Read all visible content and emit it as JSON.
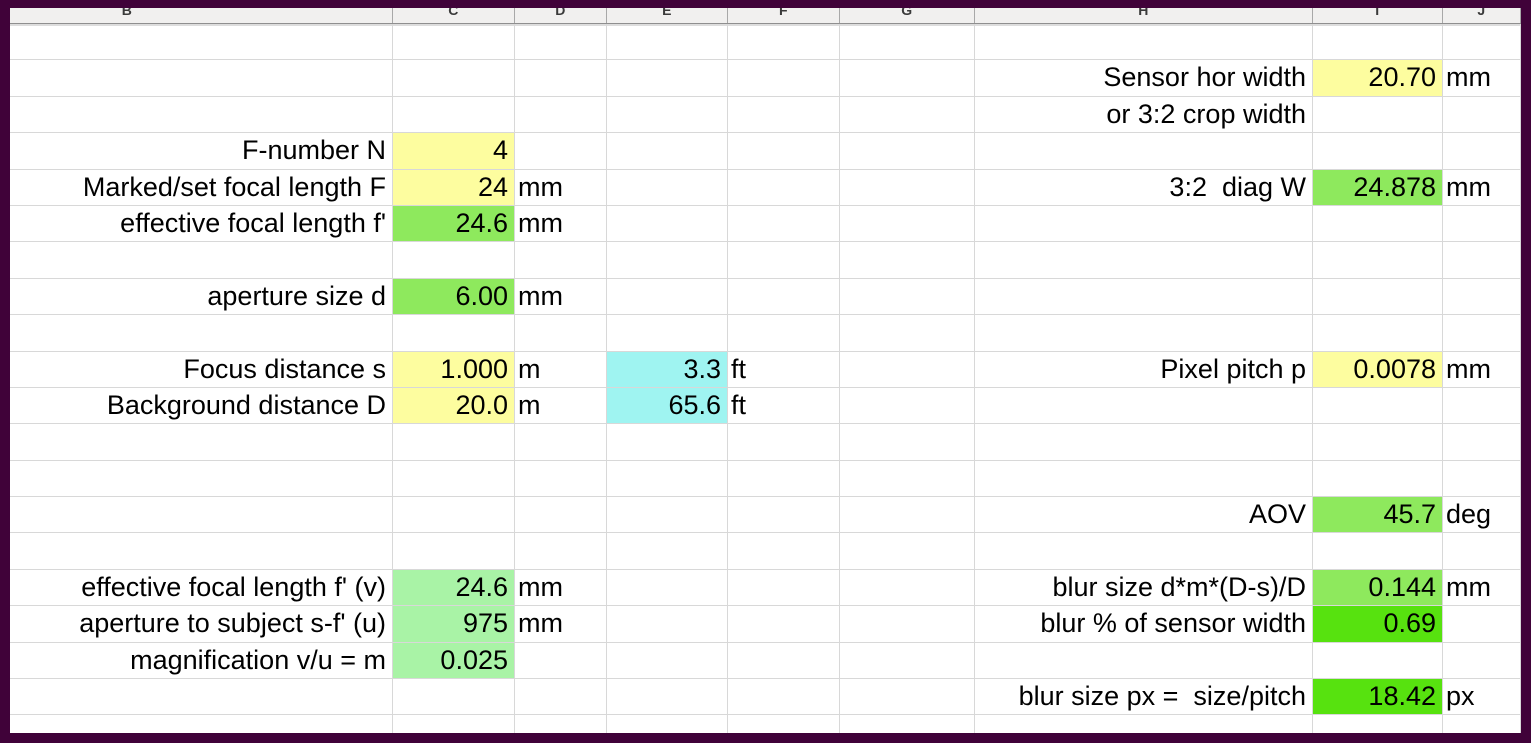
{
  "sheet": {
    "columns": [
      "B",
      "C",
      "D",
      "E",
      "F",
      "G",
      "H",
      "I",
      "J"
    ],
    "visible_row_count": 20,
    "palette": {
      "frame_purple": "#400239",
      "gridline_gray": "#D8D8D8",
      "header_bg": "#F1F0EF",
      "input_yellow": "#FDFD9F",
      "result_green": "#8EE95D",
      "result_pastel_green": "#A9F3A6",
      "result_vivid_green": "#57E20F",
      "alt_unit_cyan": "#9FF4F1"
    },
    "cells": [
      {
        "row": 2,
        "col": "H",
        "text": "Sensor hor width",
        "align": "right"
      },
      {
        "row": 2,
        "col": "I",
        "text": "20.70",
        "align": "right",
        "bg": "input_yellow"
      },
      {
        "row": 2,
        "col": "J",
        "text": "mm",
        "align": "left"
      },
      {
        "row": 3,
        "col": "H",
        "text": "or 3:2 crop width",
        "align": "right"
      },
      {
        "row": 4,
        "col": "B",
        "text": "F-number N",
        "align": "right"
      },
      {
        "row": 4,
        "col": "C",
        "text": "4",
        "align": "right",
        "bg": "input_yellow"
      },
      {
        "row": 5,
        "col": "B",
        "text": "Marked/set focal length F",
        "align": "right"
      },
      {
        "row": 5,
        "col": "C",
        "text": "24",
        "align": "right",
        "bg": "input_yellow"
      },
      {
        "row": 5,
        "col": "D",
        "text": "mm",
        "align": "left"
      },
      {
        "row": 5,
        "col": "H",
        "text": "3:2  diag W",
        "align": "right"
      },
      {
        "row": 5,
        "col": "I",
        "text": "24.878",
        "align": "right",
        "bg": "result_green"
      },
      {
        "row": 5,
        "col": "J",
        "text": "mm",
        "align": "left"
      },
      {
        "row": 6,
        "col": "B",
        "text": "effective focal length f'",
        "align": "right"
      },
      {
        "row": 6,
        "col": "C",
        "text": "24.6",
        "align": "right",
        "bg": "result_green"
      },
      {
        "row": 6,
        "col": "D",
        "text": "mm",
        "align": "left"
      },
      {
        "row": 8,
        "col": "B",
        "text": "aperture size d",
        "align": "right"
      },
      {
        "row": 8,
        "col": "C",
        "text": "6.00",
        "align": "right",
        "bg": "result_green"
      },
      {
        "row": 8,
        "col": "D",
        "text": "mm",
        "align": "left"
      },
      {
        "row": 10,
        "col": "B",
        "text": "Focus distance s",
        "align": "right"
      },
      {
        "row": 10,
        "col": "C",
        "text": "1.000",
        "align": "right",
        "bg": "input_yellow"
      },
      {
        "row": 10,
        "col": "D",
        "text": "m",
        "align": "left"
      },
      {
        "row": 10,
        "col": "E",
        "text": "3.3",
        "align": "right",
        "bg": "alt_unit_cyan"
      },
      {
        "row": 10,
        "col": "F",
        "text": "ft",
        "align": "left"
      },
      {
        "row": 10,
        "col": "H",
        "text": "Pixel pitch p",
        "align": "right"
      },
      {
        "row": 10,
        "col": "I",
        "text": "0.0078",
        "align": "right",
        "bg": "input_yellow"
      },
      {
        "row": 10,
        "col": "J",
        "text": "mm",
        "align": "left"
      },
      {
        "row": 11,
        "col": "B",
        "text": "Background distance D",
        "align": "right"
      },
      {
        "row": 11,
        "col": "C",
        "text": "20.0",
        "align": "right",
        "bg": "input_yellow"
      },
      {
        "row": 11,
        "col": "D",
        "text": "m",
        "align": "left"
      },
      {
        "row": 11,
        "col": "E",
        "text": "65.6",
        "align": "right",
        "bg": "alt_unit_cyan"
      },
      {
        "row": 11,
        "col": "F",
        "text": "ft",
        "align": "left"
      },
      {
        "row": 14,
        "col": "H",
        "text": "AOV",
        "align": "right"
      },
      {
        "row": 14,
        "col": "I",
        "text": "45.7",
        "align": "right",
        "bg": "result_green"
      },
      {
        "row": 14,
        "col": "J",
        "text": "deg",
        "align": "left"
      },
      {
        "row": 16,
        "col": "B",
        "text": "effective focal length f' (v)",
        "align": "right"
      },
      {
        "row": 16,
        "col": "C",
        "text": "24.6",
        "align": "right",
        "bg": "result_pastel_green"
      },
      {
        "row": 16,
        "col": "D",
        "text": "mm",
        "align": "left"
      },
      {
        "row": 16,
        "col": "H",
        "text": "blur size d*m*(D-s)/D",
        "align": "right"
      },
      {
        "row": 16,
        "col": "I",
        "text": "0.144",
        "align": "right",
        "bg": "result_green"
      },
      {
        "row": 16,
        "col": "J",
        "text": "mm",
        "align": "left"
      },
      {
        "row": 17,
        "col": "B",
        "text": "aperture to subject s-f' (u)",
        "align": "right"
      },
      {
        "row": 17,
        "col": "C",
        "text": "975",
        "align": "right",
        "bg": "result_pastel_green"
      },
      {
        "row": 17,
        "col": "D",
        "text": "mm",
        "align": "left"
      },
      {
        "row": 17,
        "col": "H",
        "text": "blur % of sensor width",
        "align": "right"
      },
      {
        "row": 17,
        "col": "I",
        "text": "0.69",
        "align": "right",
        "bg": "result_vivid_green"
      },
      {
        "row": 18,
        "col": "B",
        "text": "magnification v/u = m",
        "align": "right"
      },
      {
        "row": 18,
        "col": "C",
        "text": "0.025",
        "align": "right",
        "bg": "result_pastel_green"
      },
      {
        "row": 19,
        "col": "H",
        "text": "blur size px =  size/pitch",
        "align": "right"
      },
      {
        "row": 19,
        "col": "I",
        "text": "18.42",
        "align": "right",
        "bg": "result_vivid_green"
      },
      {
        "row": 19,
        "col": "J",
        "text": "px",
        "align": "left"
      }
    ]
  }
}
